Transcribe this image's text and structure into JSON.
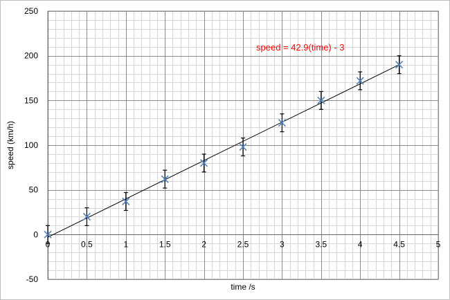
{
  "chart_data": {
    "type": "scatter",
    "title": "",
    "xlabel": "time /s",
    "ylabel": "speed (km/h)",
    "xlim": [
      0,
      5
    ],
    "ylim": [
      -50,
      250
    ],
    "x_ticks": [
      0,
      0.5,
      1,
      1.5,
      2,
      2.5,
      3,
      3.5,
      4,
      4.5,
      5
    ],
    "x_tick_labels": [
      "0",
      "0.5",
      "1",
      "1.5",
      "2",
      "2.5",
      "3",
      "3.5",
      "4",
      "4.5",
      "5"
    ],
    "y_ticks": [
      -50,
      0,
      50,
      100,
      150,
      200,
      250
    ],
    "y_tick_labels": [
      "-50",
      "0",
      "50",
      "100",
      "150",
      "200",
      "250"
    ],
    "grid": true,
    "minor_grid": true,
    "series": [
      {
        "type": "scatter",
        "marker": "x",
        "color": "#4f81bd",
        "x": [
          0,
          0.5,
          1,
          1.5,
          2,
          2.5,
          3,
          3.5,
          4,
          4.5
        ],
        "y": [
          0,
          20,
          37,
          62,
          80,
          98,
          125,
          150,
          172,
          190
        ],
        "error": 10,
        "error_color": "#000000"
      }
    ],
    "trendline": {
      "slope": 42.9,
      "intercept": -3,
      "x_range": [
        0,
        4.5
      ],
      "color": "#000000",
      "equation_label": "speed = 42.9(time) - 3",
      "equation_color": "#ff0000"
    }
  }
}
